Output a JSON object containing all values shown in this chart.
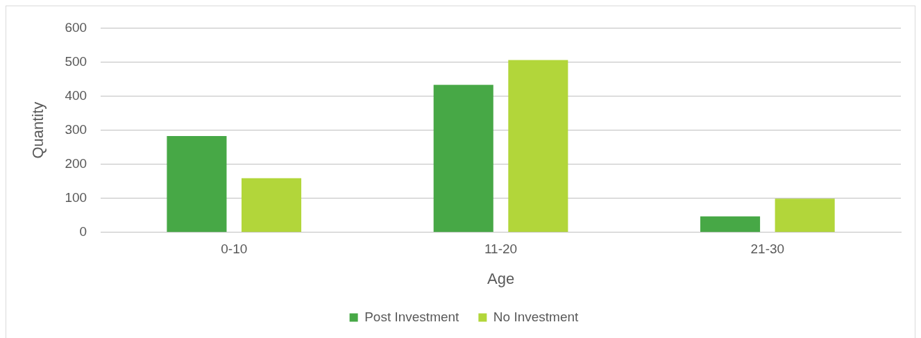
{
  "chart_data": {
    "type": "bar",
    "xlabel": "Age",
    "ylabel": "Quantity",
    "categories": [
      "0-10",
      "11-20",
      "21-30"
    ],
    "series": [
      {
        "name": "Post Investment",
        "color": "#47a846",
        "values": [
          283,
          433,
          47
        ]
      },
      {
        "name": "No Investment",
        "color": "#b2d63a",
        "values": [
          159,
          506,
          99
        ]
      }
    ],
    "ylim": [
      0,
      600
    ],
    "yticks": [
      0,
      100,
      200,
      300,
      400,
      500,
      600
    ],
    "grid": "y",
    "legend": "bottom"
  }
}
